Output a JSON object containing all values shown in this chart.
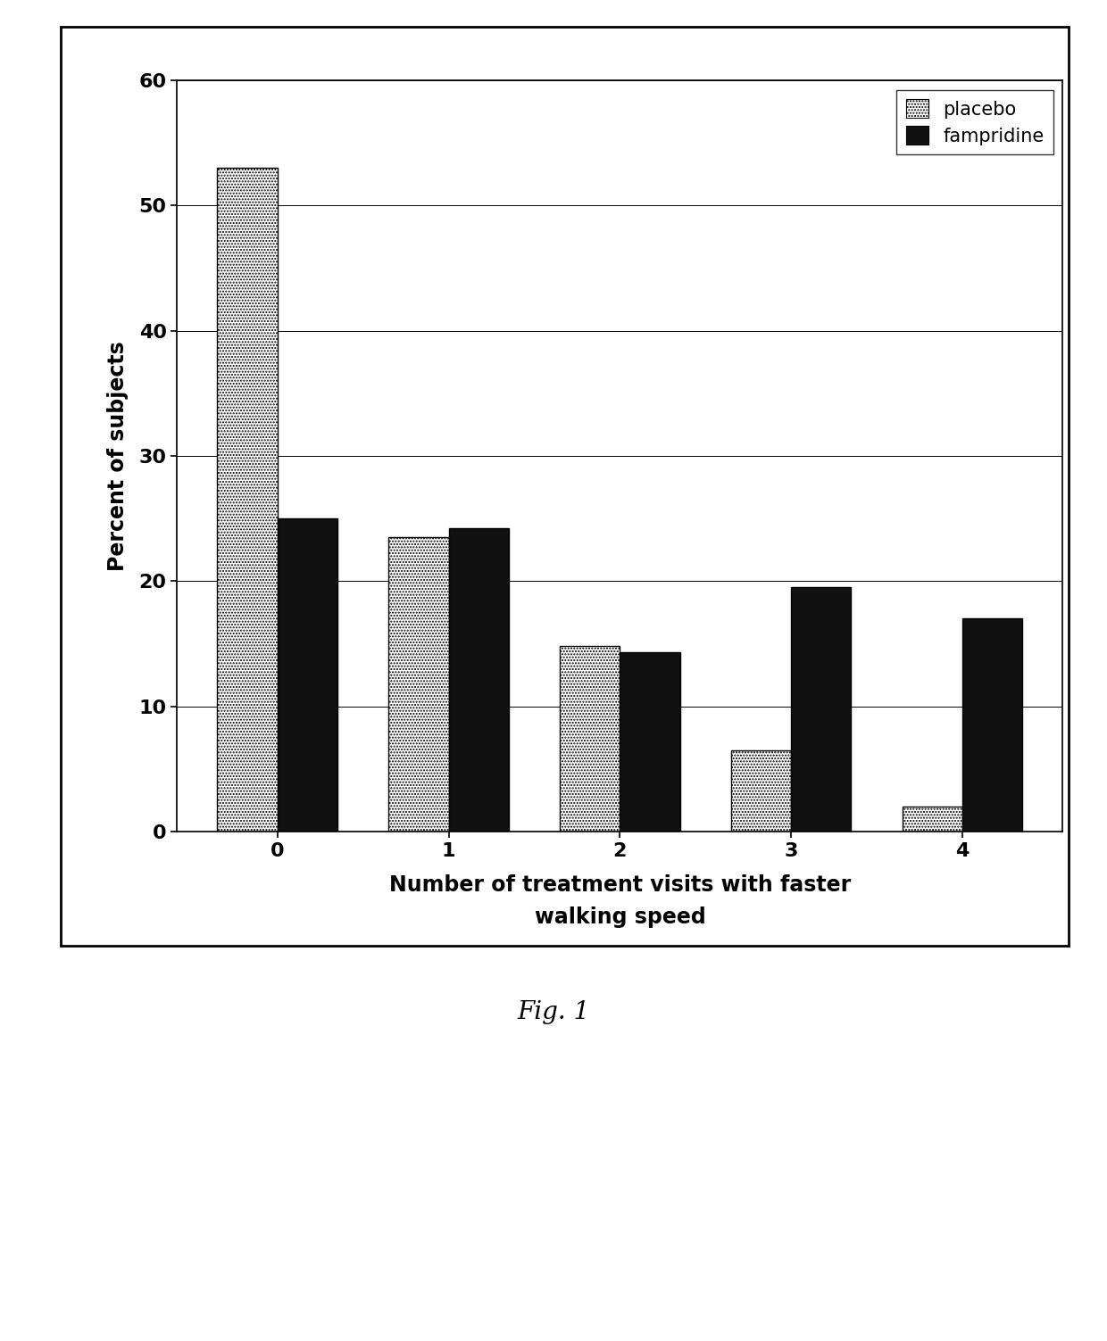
{
  "categories": [
    0,
    1,
    2,
    3,
    4
  ],
  "placebo_values": [
    53.0,
    23.5,
    14.8,
    6.5,
    2.0
  ],
  "fampridine_values": [
    25.0,
    24.2,
    14.3,
    19.5,
    17.0
  ],
  "placebo_color": "#ffffff",
  "placebo_hatch": ".....",
  "fampridine_color": "#111111",
  "bar_edge_color": "#000000",
  "ylabel": "Percent of subjects",
  "xlabel_line1": "Number of treatment visits with faster",
  "xlabel_line2": "walking speed",
  "ylim": [
    0,
    60
  ],
  "yticks": [
    0,
    10,
    20,
    30,
    40,
    50,
    60
  ],
  "legend_labels": [
    "placebo",
    "fampridine"
  ],
  "fig_caption": "Fig. 1",
  "background_color": "#ffffff",
  "bar_width": 0.35,
  "outer_box_color": "#000000"
}
